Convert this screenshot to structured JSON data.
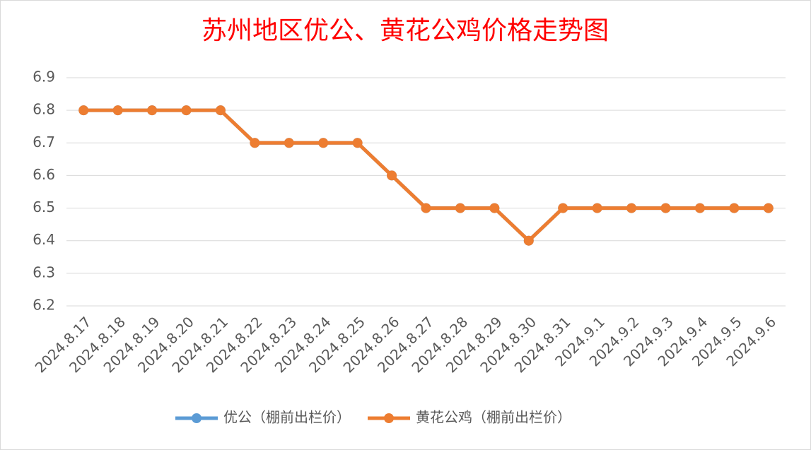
{
  "chart_data": {
    "type": "line",
    "title": "苏州地区优公、黄花公鸡价格走势图",
    "categories": [
      "2024.8.17",
      "2024.8.18",
      "2024.8.19",
      "2024.8.20",
      "2024.8.21",
      "2024.8.22",
      "2024.8.23",
      "2024.8.24",
      "2024.8.25",
      "2024.8.26",
      "2024.8.27",
      "2024.8.28",
      "2024.8.29",
      "2024.8.30",
      "2024.8.31",
      "2024.9.1",
      "2024.9.2",
      "2024.9.3",
      "2024.9.4",
      "2024.9.5",
      "2024.9.6"
    ],
    "series": [
      {
        "name": "优公（棚前出栏价）",
        "color": "#5b9bd5",
        "values": [
          6.8,
          6.8,
          6.8,
          6.8,
          6.8,
          6.7,
          6.7,
          6.7,
          6.7,
          6.6,
          6.5,
          6.5,
          6.5,
          6.4,
          6.5,
          6.5,
          6.5,
          6.5,
          6.5,
          6.5,
          6.5
        ]
      },
      {
        "name": "黄花公鸡（棚前出栏价）",
        "color": "#ed7d31",
        "values": [
          6.8,
          6.8,
          6.8,
          6.8,
          6.8,
          6.7,
          6.7,
          6.7,
          6.7,
          6.6,
          6.5,
          6.5,
          6.5,
          6.4,
          6.5,
          6.5,
          6.5,
          6.5,
          6.5,
          6.5,
          6.5
        ]
      }
    ],
    "ylim": [
      6.2,
      6.9
    ],
    "yticks": [
      6.2,
      6.3,
      6.4,
      6.5,
      6.6,
      6.7,
      6.8,
      6.9
    ],
    "grid": true,
    "legend": "bottom"
  }
}
